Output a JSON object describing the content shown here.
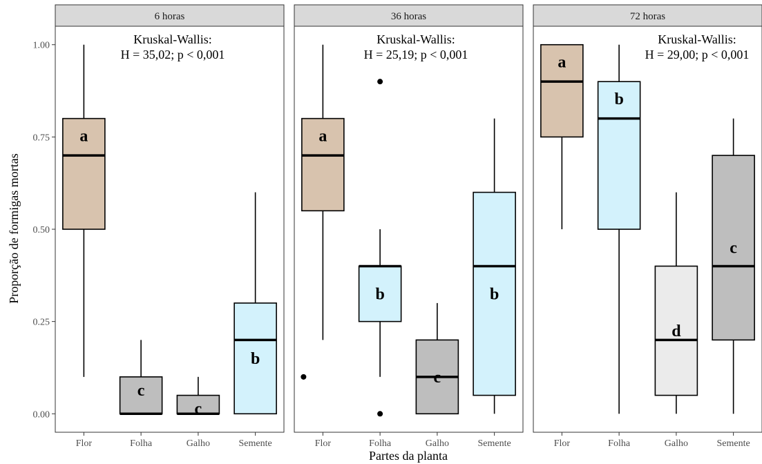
{
  "chart_data": {
    "type": "boxplot",
    "xlabel": "Partes da planta",
    "ylabel": "Proporção de formigas mortas",
    "ylim": [
      -0.05,
      1.05
    ],
    "y_ticks": [
      "0.00",
      "0.25",
      "0.50",
      "0.75",
      "1.00"
    ],
    "categories": [
      "Flor",
      "Folha",
      "Galho",
      "Semente"
    ],
    "colors": {
      "tan": "#d8c3ae",
      "lightblue": "#d3f2fc",
      "gray": "#bebebe",
      "lightgray": "#ebebeb",
      "strip": "#d9d9d9"
    },
    "panels": [
      {
        "title": "6 horas",
        "annotation": [
          "Kruskal-Wallis:",
          "H = 35,02; p < 0,001"
        ],
        "boxes": [
          {
            "category": "Flor",
            "min": 0.1,
            "q1": 0.5,
            "median": 0.7,
            "q3": 0.8,
            "max": 1.0,
            "outliers": [],
            "letter": "a",
            "color": "#d8c3ae"
          },
          {
            "category": "Folha",
            "min": 0.0,
            "q1": 0.0,
            "median": 0.0,
            "q3": 0.1,
            "max": 0.2,
            "outliers": [],
            "letter": "c",
            "color": "#bebebe"
          },
          {
            "category": "Galho",
            "min": 0.0,
            "q1": 0.0,
            "median": 0.0,
            "q3": 0.05,
            "max": 0.1,
            "outliers": [],
            "letter": "c",
            "color": "#bebebe"
          },
          {
            "category": "Semente",
            "min": 0.0,
            "q1": 0.0,
            "median": 0.2,
            "q3": 0.3,
            "max": 0.6,
            "outliers": [],
            "letter": "b",
            "color": "#d3f2fc"
          }
        ]
      },
      {
        "title": "36 horas",
        "annotation": [
          "Kruskal-Wallis:",
          "H = 25,19; p < 0,001"
        ],
        "boxes": [
          {
            "category": "Flor",
            "min": 0.2,
            "q1": 0.55,
            "median": 0.7,
            "q3": 0.8,
            "max": 1.0,
            "outliers": [
              0.1
            ],
            "letter": "a",
            "color": "#d8c3ae"
          },
          {
            "category": "Folha",
            "min": 0.1,
            "q1": 0.25,
            "median": 0.4,
            "q3": 0.4,
            "max": 0.5,
            "outliers": [
              0.9,
              0.0
            ],
            "letter": "b",
            "color": "#d3f2fc"
          },
          {
            "category": "Galho",
            "min": 0.0,
            "q1": 0.0,
            "median": 0.1,
            "q3": 0.2,
            "max": 0.3,
            "outliers": [],
            "letter": "c",
            "color": "#bebebe"
          },
          {
            "category": "Semente",
            "min": 0.0,
            "q1": 0.05,
            "median": 0.4,
            "q3": 0.6,
            "max": 0.8,
            "outliers": [],
            "letter": "b",
            "color": "#d3f2fc"
          }
        ]
      },
      {
        "title": "72 horas",
        "annotation": [
          "Kruskal-Wallis:",
          "H = 29,00; p < 0,001"
        ],
        "boxes": [
          {
            "category": "Flor",
            "min": 0.5,
            "q1": 0.75,
            "median": 0.9,
            "q3": 1.0,
            "max": 1.0,
            "outliers": [],
            "letter": "a",
            "color": "#d8c3ae"
          },
          {
            "category": "Folha",
            "min": 0.0,
            "q1": 0.5,
            "median": 0.8,
            "q3": 0.9,
            "max": 1.0,
            "outliers": [],
            "letter": "b",
            "color": "#d3f2fc"
          },
          {
            "category": "Galho",
            "min": 0.0,
            "q1": 0.05,
            "median": 0.2,
            "q3": 0.4,
            "max": 0.6,
            "outliers": [],
            "letter": "d",
            "color": "#ebebeb"
          },
          {
            "category": "Semente",
            "min": 0.0,
            "q1": 0.2,
            "median": 0.4,
            "q3": 0.7,
            "max": 0.8,
            "outliers": [],
            "letter": "c",
            "color": "#bebebe"
          }
        ]
      }
    ]
  }
}
